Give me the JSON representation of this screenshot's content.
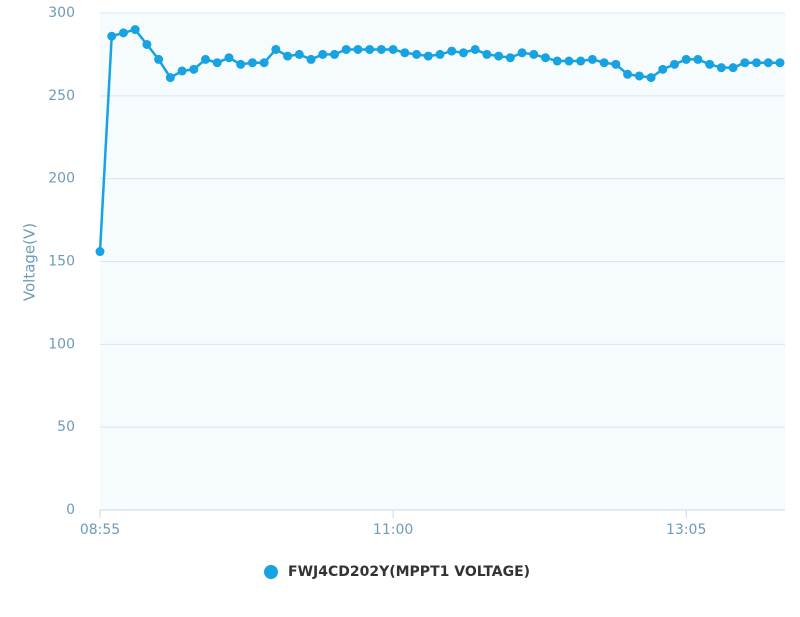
{
  "chart_data": {
    "type": "line",
    "y_label": "Voltage(V)",
    "categories": [
      "08:55",
      null,
      null,
      null,
      null,
      null,
      null,
      null,
      null,
      null,
      null,
      null,
      null,
      null,
      null,
      null,
      null,
      null,
      null,
      null,
      null,
      null,
      null,
      null,
      null,
      "11:00",
      null,
      null,
      null,
      null,
      null,
      null,
      null,
      null,
      null,
      null,
      null,
      null,
      null,
      null,
      null,
      null,
      null,
      null,
      null,
      null,
      null,
      null,
      null,
      null,
      "13:05",
      null,
      null,
      null,
      null,
      null,
      null,
      null,
      null
    ],
    "series": [
      {
        "name": "FWJ4CD202Y(MPPT1 VOLTAGE)",
        "color": "#17a2e2",
        "values": [
          156,
          286,
          288,
          290,
          281,
          272,
          261,
          265,
          266,
          272,
          270,
          273,
          269,
          270,
          270,
          278,
          274,
          275,
          272,
          275,
          275,
          278,
          278,
          278,
          278,
          278,
          276,
          275,
          274,
          275,
          277,
          276,
          278,
          275,
          274,
          273,
          276,
          275,
          273,
          271,
          271,
          271,
          272,
          270,
          269,
          263,
          262,
          261,
          266,
          269,
          272,
          272,
          269,
          267,
          267,
          270,
          270,
          270,
          270
        ]
      }
    ],
    "ylim": [
      0,
      300
    ],
    "yticks": [
      0,
      50,
      100,
      150,
      200,
      250,
      300
    ],
    "grid": true,
    "legend": "bottom"
  }
}
